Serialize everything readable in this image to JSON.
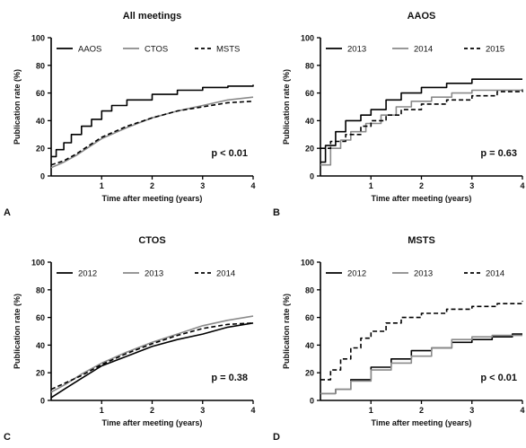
{
  "chart_data": [
    {
      "type": "line",
      "panel_letter": "A",
      "title": "All meetings",
      "xlabel": "Time after meeting (years)",
      "ylabel": "Publication rate (%)",
      "xlim": [
        0,
        4
      ],
      "ylim": [
        0,
        100
      ],
      "x_ticks": [
        1,
        2,
        3,
        4
      ],
      "y_ticks": [
        0,
        20,
        40,
        60,
        80,
        100
      ],
      "annotation": "p < 0.01",
      "legend_position": "top",
      "grid": false,
      "series": [
        {
          "name": "AAOS",
          "color": "#000000",
          "dash": "solid",
          "step": true,
          "x": [
            0,
            0.1,
            0.25,
            0.4,
            0.6,
            0.8,
            1.0,
            1.2,
            1.5,
            2.0,
            2.5,
            3.0,
            3.5,
            4.0
          ],
          "y": [
            14,
            19,
            24,
            30,
            36,
            41,
            47,
            51,
            55,
            59,
            62,
            64,
            65,
            66
          ]
        },
        {
          "name": "CTOS",
          "color": "#8a8a8a",
          "dash": "solid",
          "step": false,
          "x": [
            0,
            0.25,
            0.5,
            0.75,
            1.0,
            1.5,
            2.0,
            2.5,
            3.0,
            3.5,
            4.0
          ],
          "y": [
            6,
            10,
            15,
            21,
            27,
            35,
            42,
            47,
            51,
            55,
            57
          ]
        },
        {
          "name": "MSTS",
          "color": "#000000",
          "dash": "dashed",
          "step": false,
          "x": [
            0,
            0.25,
            0.5,
            0.75,
            1.0,
            1.5,
            2.0,
            2.5,
            3.0,
            3.5,
            4.0
          ],
          "y": [
            8,
            11,
            16,
            22,
            28,
            36,
            42,
            47,
            50,
            53,
            54
          ]
        }
      ]
    },
    {
      "type": "line",
      "panel_letter": "B",
      "title": "AAOS",
      "xlabel": "Time after meeting (years)",
      "ylabel": "Publication rate (%)",
      "xlim": [
        0,
        4
      ],
      "ylim": [
        0,
        100
      ],
      "x_ticks": [
        1,
        2,
        3,
        4
      ],
      "y_ticks": [
        0,
        20,
        40,
        60,
        80,
        100
      ],
      "annotation": "p = 0.63",
      "legend_position": "top",
      "grid": false,
      "series": [
        {
          "name": "2013",
          "color": "#000000",
          "dash": "solid",
          "step": true,
          "x": [
            0,
            0.1,
            0.3,
            0.5,
            0.8,
            1.0,
            1.3,
            1.6,
            2.0,
            2.5,
            3.0,
            4.0
          ],
          "y": [
            10,
            22,
            32,
            40,
            44,
            48,
            55,
            60,
            64,
            67,
            70,
            70
          ]
        },
        {
          "name": "2014",
          "color": "#8a8a8a",
          "dash": "solid",
          "step": true,
          "x": [
            0,
            0.2,
            0.4,
            0.6,
            0.9,
            1.2,
            1.5,
            1.8,
            2.2,
            2.6,
            3.0,
            4.0
          ],
          "y": [
            8,
            20,
            26,
            32,
            38,
            44,
            50,
            54,
            57,
            60,
            62,
            63
          ]
        },
        {
          "name": "2015",
          "color": "#000000",
          "dash": "dashed",
          "step": true,
          "x": [
            0,
            0.2,
            0.5,
            0.8,
            1.0,
            1.3,
            1.6,
            2.0,
            2.5,
            3.0,
            3.5,
            4.0
          ],
          "y": [
            20,
            25,
            30,
            36,
            40,
            44,
            48,
            52,
            55,
            58,
            61,
            62
          ]
        }
      ]
    },
    {
      "type": "line",
      "panel_letter": "C",
      "title": "CTOS",
      "xlabel": "Time after meeting (years)",
      "ylabel": "Publication rate (%)",
      "xlim": [
        0,
        4
      ],
      "ylim": [
        0,
        100
      ],
      "x_ticks": [
        1,
        2,
        3,
        4
      ],
      "y_ticks": [
        0,
        20,
        40,
        60,
        80,
        100
      ],
      "annotation": "p = 0.38",
      "legend_position": "top",
      "grid": false,
      "series": [
        {
          "name": "2012",
          "color": "#000000",
          "dash": "solid",
          "step": false,
          "x": [
            0,
            0.3,
            0.6,
            1.0,
            1.5,
            2.0,
            2.5,
            3.0,
            3.5,
            4.0
          ],
          "y": [
            2,
            9,
            16,
            25,
            32,
            39,
            44,
            48,
            53,
            56
          ]
        },
        {
          "name": "2013",
          "color": "#8a8a8a",
          "dash": "solid",
          "step": false,
          "x": [
            0,
            0.3,
            0.6,
            1.0,
            1.5,
            2.0,
            2.5,
            3.0,
            3.5,
            4.0
          ],
          "y": [
            6,
            12,
            19,
            27,
            35,
            42,
            48,
            54,
            58,
            61
          ]
        },
        {
          "name": "2014",
          "color": "#000000",
          "dash": "dashed",
          "step": false,
          "x": [
            0,
            0.3,
            0.6,
            1.0,
            1.5,
            2.0,
            2.5,
            3.0,
            3.5,
            4.0
          ],
          "y": [
            8,
            13,
            18,
            26,
            34,
            41,
            47,
            52,
            55,
            56
          ]
        }
      ]
    },
    {
      "type": "line",
      "panel_letter": "D",
      "title": "MSTS",
      "xlabel": "Time after meeting (years)",
      "ylabel": "Publication rate (%)",
      "xlim": [
        0,
        4
      ],
      "ylim": [
        0,
        100
      ],
      "x_ticks": [
        1,
        2,
        3,
        4
      ],
      "y_ticks": [
        0,
        20,
        40,
        60,
        80,
        100
      ],
      "annotation": "p < 0.01",
      "legend_position": "top",
      "grid": false,
      "series": [
        {
          "name": "2012",
          "color": "#000000",
          "dash": "solid",
          "step": true,
          "x": [
            0,
            0.3,
            0.6,
            1.0,
            1.4,
            1.8,
            2.2,
            2.6,
            3.0,
            3.4,
            3.8,
            4.0
          ],
          "y": [
            5,
            8,
            15,
            24,
            30,
            36,
            38,
            42,
            44,
            46,
            48,
            48
          ]
        },
        {
          "name": "2013",
          "color": "#8a8a8a",
          "dash": "solid",
          "step": true,
          "x": [
            0,
            0.3,
            0.6,
            1.0,
            1.4,
            1.8,
            2.2,
            2.6,
            3.0,
            3.4,
            3.8,
            4.0
          ],
          "y": [
            5,
            8,
            14,
            22,
            27,
            32,
            38,
            44,
            46,
            47,
            47,
            47
          ]
        },
        {
          "name": "2014",
          "color": "#000000",
          "dash": "dashed",
          "step": true,
          "x": [
            0,
            0.2,
            0.4,
            0.6,
            0.8,
            1.0,
            1.3,
            1.6,
            2.0,
            2.5,
            3.0,
            3.5,
            4.0
          ],
          "y": [
            15,
            22,
            30,
            38,
            45,
            50,
            56,
            60,
            63,
            66,
            68,
            70,
            72
          ]
        }
      ]
    }
  ]
}
